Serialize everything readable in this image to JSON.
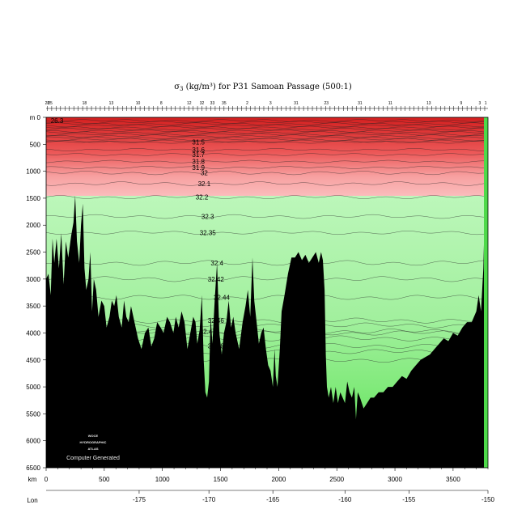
{
  "chart_data": {
    "type": "heatmap",
    "title_symbol": "σ",
    "title_sub": "3",
    "title_rest": " (kg/m³) for P31 Samoan Passage (500:1)",
    "y_axis_unit": "m",
    "ylim": [
      0,
      6500
    ],
    "y_ticks": [
      "0",
      "500",
      "1000",
      "1500",
      "2000",
      "2500",
      "3000",
      "3500",
      "4000",
      "4500",
      "5000",
      "5500",
      "6000",
      "6500"
    ],
    "x_axis_unit": "km",
    "xlim": [
      0,
      3800
    ],
    "x_ticks": [
      "0",
      "500",
      "1000",
      "1500",
      "2000",
      "2500",
      "3000",
      "3500"
    ],
    "lon_label": "Lon",
    "lon_ticks": [
      {
        "label": "-175",
        "km": 800
      },
      {
        "label": "-170",
        "km": 1400
      },
      {
        "label": "-165",
        "km": 1950
      },
      {
        "label": "-160",
        "km": 2570
      },
      {
        "label": "-155",
        "km": 3120
      },
      {
        "label": "-150",
        "km": 3800
      }
    ],
    "station_numbers": [
      {
        "label": "28",
        "km": 10
      },
      {
        "label": "25",
        "km": 35
      },
      {
        "label": "18",
        "km": 330
      },
      {
        "label": "13",
        "km": 560
      },
      {
        "label": "10",
        "km": 790
      },
      {
        "label": "8",
        "km": 990
      },
      {
        "label": "12",
        "km": 1230
      },
      {
        "label": "32",
        "km": 1340
      },
      {
        "label": "33",
        "km": 1430
      },
      {
        "label": "35",
        "km": 1530
      },
      {
        "label": "2",
        "km": 1730
      },
      {
        "label": "3",
        "km": 1930
      },
      {
        "label": "31",
        "km": 2150
      },
      {
        "label": "23",
        "km": 2410
      },
      {
        "label": "31",
        "km": 2700
      },
      {
        "label": "11",
        "km": 2960
      },
      {
        "label": "13",
        "km": 3290
      },
      {
        "label": "9",
        "km": 3570
      },
      {
        "label": "3",
        "km": 3730
      },
      {
        "label": "1",
        "km": 3780
      }
    ],
    "surface_label": "26.3",
    "isopycnals": [
      {
        "label": "31.5",
        "depth": 460,
        "lbl_km": 1310
      },
      {
        "label": "31.6",
        "depth": 600,
        "lbl_km": 1310
      },
      {
        "label": "31.7",
        "depth": 690,
        "lbl_km": 1310
      },
      {
        "label": "31.8",
        "depth": 820,
        "lbl_km": 1310
      },
      {
        "label": "31.9",
        "depth": 930,
        "lbl_km": 1310
      },
      {
        "label": "32",
        "depth": 1030,
        "lbl_km": 1360
      },
      {
        "label": "32.1",
        "depth": 1230,
        "lbl_km": 1360
      },
      {
        "label": "32.2",
        "depth": 1480,
        "lbl_km": 1340
      },
      {
        "label": "32.3",
        "depth": 1840,
        "lbl_km": 1390
      },
      {
        "label": "32.35",
        "depth": 2140,
        "lbl_km": 1390
      },
      {
        "label": "32.4",
        "depth": 2700,
        "lbl_km": 1470
      },
      {
        "label": "32.42",
        "depth": 3000,
        "lbl_km": 1460
      },
      {
        "label": "32.44",
        "depth": 3340,
        "lbl_km": 1510
      },
      {
        "label": "32.46",
        "depth": 3770,
        "lbl_km": 1460
      },
      {
        "label": "32.47",
        "depth": 3970,
        "lbl_km": 1390
      },
      {
        "label": "32.48",
        "depth": 4240,
        "lbl_km": 1460
      }
    ],
    "colors": {
      "surface_red": "#e02a2a",
      "mid_red": "#f46a6a",
      "light_pink": "#fbb8b8",
      "light_green": "#b6f6b4",
      "deep_green": "#5fe05a",
      "terrain": "#000000"
    },
    "watermark_lines": [
      "WOCE",
      "HYDROGRAPHIC",
      "ATLAS"
    ],
    "watermark_caption": "Computer Generated"
  }
}
